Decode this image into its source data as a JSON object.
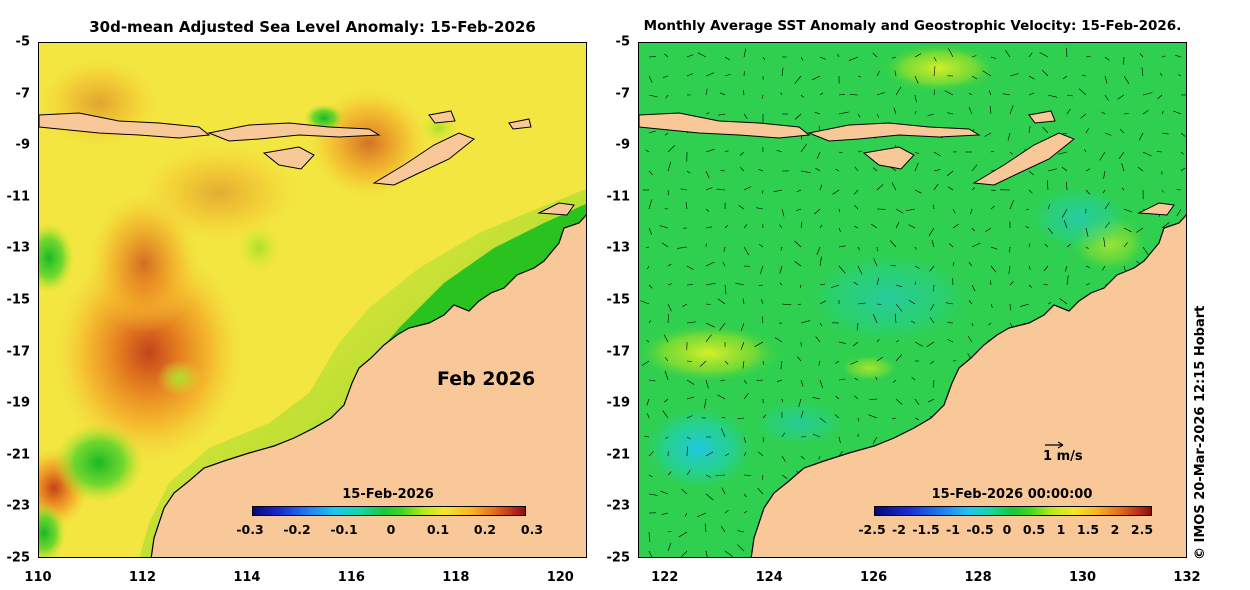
{
  "left_panel": {
    "title": "30d-mean Adjusted Sea Level Anomaly: 15-Feb-2026",
    "month_label": "Feb 2026",
    "colorbar": {
      "date": "15-Feb-2026",
      "ticks": [
        "-0.3",
        "-0.2",
        "-0.1",
        "0",
        "0.1",
        "0.2",
        "0.3"
      ]
    }
  },
  "right_panel": {
    "title": "Monthly Average SST Anomaly  and Geostrophic Velocity: 15-Feb-2026.",
    "velocity_key": "1 m/s",
    "colorbar": {
      "date": "15-Feb-2026 00:00:00",
      "ticks": [
        "-2.5",
        "-2",
        "-1.5",
        "-1",
        "-0.5",
        "0",
        "0.5",
        "1",
        "1.5",
        "2",
        "2.5"
      ]
    }
  },
  "axes": {
    "lat_ticks": [
      "-5",
      "-7",
      "-9",
      "-11",
      "-13",
      "-15",
      "-17",
      "-19",
      "-21",
      "-23",
      "-25"
    ],
    "lon_ticks": [
      "110",
      "112",
      "114",
      "116",
      "118",
      "120",
      "122",
      "124",
      "126",
      "128",
      "130",
      "132"
    ]
  },
  "credit": "© IMOS 20-Mar-2026 12:15 Hobart",
  "colors": {
    "land": "#f9c898",
    "sla_background": "#f3e640",
    "sst_background": "#2fcf4f"
  }
}
